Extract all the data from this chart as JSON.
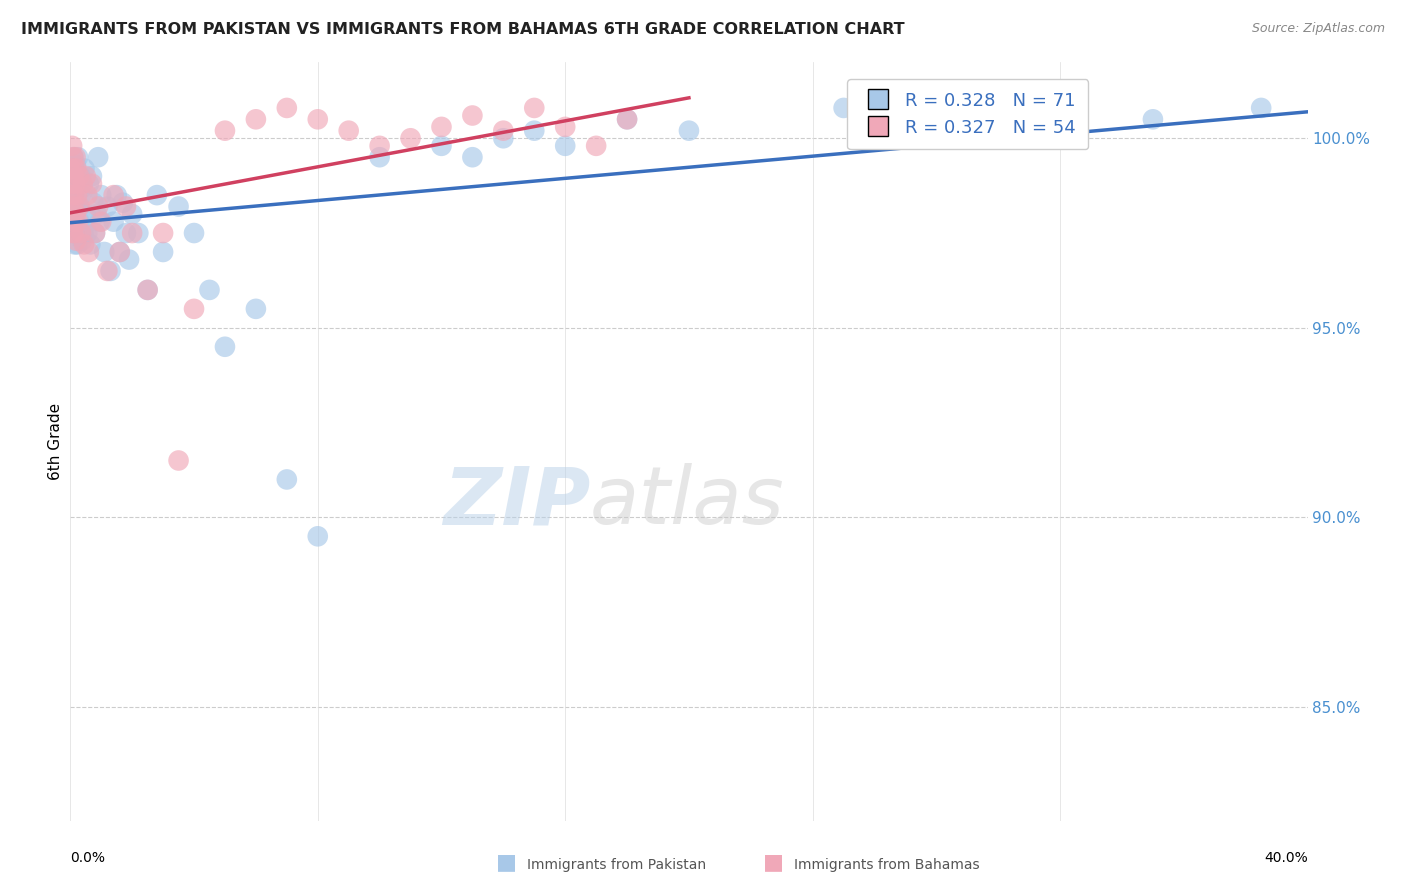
{
  "title": "IMMIGRANTS FROM PAKISTAN VS IMMIGRANTS FROM BAHAMAS 6TH GRADE CORRELATION CHART",
  "source": "Source: ZipAtlas.com",
  "ylabel": "6th Grade",
  "xlim": [
    0.0,
    40.0
  ],
  "ylim": [
    82.0,
    102.0
  ],
  "y_ticks": [
    85.0,
    90.0,
    95.0,
    100.0
  ],
  "pakistan_R": 0.328,
  "pakistan_N": 71,
  "bahamas_R": 0.327,
  "bahamas_N": 54,
  "pakistan_color": "#a8c8e8",
  "bahamas_color": "#f0a8b8",
  "pakistan_line_color": "#3a6fbe",
  "bahamas_line_color": "#d04060",
  "watermark_zip": "ZIP",
  "watermark_atlas": "atlas",
  "pakistan_x": [
    0.05,
    0.07,
    0.08,
    0.09,
    0.1,
    0.1,
    0.11,
    0.12,
    0.13,
    0.14,
    0.15,
    0.16,
    0.17,
    0.18,
    0.19,
    0.2,
    0.21,
    0.22,
    0.23,
    0.25,
    0.27,
    0.3,
    0.33,
    0.35,
    0.38,
    0.4,
    0.43,
    0.46,
    0.5,
    0.55,
    0.6,
    0.65,
    0.7,
    0.75,
    0.8,
    0.85,
    0.9,
    0.95,
    1.0,
    1.1,
    1.2,
    1.3,
    1.4,
    1.5,
    1.6,
    1.7,
    1.8,
    1.9,
    2.0,
    2.2,
    2.5,
    2.8,
    3.0,
    3.5,
    4.0,
    4.5,
    5.0,
    6.0,
    7.0,
    8.0,
    10.0,
    12.0,
    13.0,
    14.0,
    15.0,
    16.0,
    18.0,
    20.0,
    25.0,
    35.0,
    38.5
  ],
  "pakistan_y": [
    98.8,
    99.2,
    97.8,
    98.5,
    99.5,
    98.0,
    97.5,
    99.0,
    98.3,
    97.2,
    99.1,
    98.6,
    97.8,
    99.3,
    98.1,
    99.0,
    97.5,
    98.8,
    97.2,
    99.5,
    98.2,
    97.8,
    99.0,
    98.5,
    97.3,
    98.7,
    97.5,
    99.2,
    98.0,
    97.5,
    98.8,
    97.2,
    99.0,
    98.3,
    97.5,
    98.0,
    99.5,
    97.8,
    98.5,
    97.0,
    98.2,
    96.5,
    97.8,
    98.5,
    97.0,
    98.3,
    97.5,
    96.8,
    98.0,
    97.5,
    96.0,
    98.5,
    97.0,
    98.2,
    97.5,
    96.0,
    94.5,
    95.5,
    91.0,
    89.5,
    99.5,
    99.8,
    99.5,
    100.0,
    100.2,
    99.8,
    100.5,
    100.2,
    100.8,
    100.5,
    100.8
  ],
  "bahamas_x": [
    0.03,
    0.05,
    0.06,
    0.07,
    0.08,
    0.09,
    0.1,
    0.11,
    0.12,
    0.13,
    0.14,
    0.15,
    0.16,
    0.17,
    0.18,
    0.19,
    0.2,
    0.22,
    0.25,
    0.28,
    0.3,
    0.35,
    0.4,
    0.45,
    0.5,
    0.55,
    0.6,
    0.7,
    0.8,
    0.9,
    1.0,
    1.2,
    1.4,
    1.6,
    1.8,
    2.0,
    2.5,
    3.0,
    3.5,
    4.0,
    5.0,
    6.0,
    7.0,
    8.0,
    9.0,
    10.0,
    11.0,
    12.0,
    13.0,
    14.0,
    15.0,
    16.0,
    17.0,
    18.0
  ],
  "bahamas_y": [
    99.2,
    98.5,
    99.8,
    98.8,
    97.5,
    99.5,
    98.2,
    99.0,
    97.8,
    98.5,
    99.2,
    97.5,
    98.8,
    99.5,
    98.0,
    97.3,
    99.2,
    98.5,
    97.8,
    99.0,
    98.2,
    97.5,
    98.8,
    97.2,
    99.0,
    98.5,
    97.0,
    98.8,
    97.5,
    98.2,
    97.8,
    96.5,
    98.5,
    97.0,
    98.2,
    97.5,
    96.0,
    97.5,
    91.5,
    95.5,
    100.2,
    100.5,
    100.8,
    100.5,
    100.2,
    99.8,
    100.0,
    100.3,
    100.6,
    100.2,
    100.8,
    100.3,
    99.8,
    100.5
  ]
}
